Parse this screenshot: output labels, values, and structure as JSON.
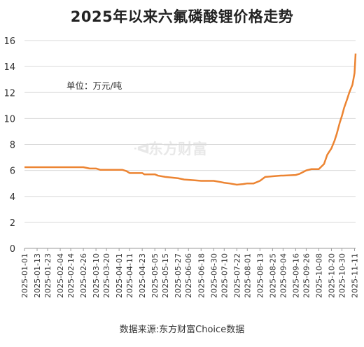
{
  "title": "2025年以来六氟磷酸锂价格走势",
  "unit_label": "单位：万元/吨",
  "source": "数据来源:东方财富Choice数据",
  "watermark": "东方财富",
  "colors": {
    "line": "#ec8432",
    "grid": "#d9d9d9",
    "axis": "#999999"
  },
  "chart_data": {
    "type": "line",
    "title": "2025年以来六氟磷酸锂价格走势",
    "xlabel": "",
    "ylabel": "单位：万元/吨",
    "ylim": [
      0,
      16
    ],
    "yticks": [
      0,
      2,
      4,
      6,
      8,
      10,
      12,
      14,
      16
    ],
    "grid": "horizontal",
    "xtick_labels": [
      "2025-01-01",
      "2025-01-13",
      "2025-01-23",
      "2025-02-04",
      "2025-02-14",
      "2025-02-26",
      "2025-03-10",
      "2025-03-20",
      "2025-04-01",
      "2025-04-11",
      "2025-04-23",
      "2025-05-05",
      "2025-05-15",
      "2025-05-27",
      "2025-06-06",
      "2025-06-18",
      "2025-06-30",
      "2025-07-10",
      "2025-07-22",
      "2025-08-01",
      "2025-08-13",
      "2025-08-25",
      "2025-09-04",
      "2025-09-16",
      "2025-09-26",
      "2025-10-08",
      "2025-10-20",
      "2025-10-30",
      "2025-11-11"
    ],
    "series": [
      {
        "x": [
          "2025-01-01",
          "2025-02-26",
          "2025-03-04",
          "2025-03-10",
          "2025-03-14",
          "2025-04-04",
          "2025-04-08",
          "2025-04-11",
          "2025-04-23",
          "2025-04-25",
          "2025-05-05",
          "2025-05-08",
          "2025-05-15",
          "2025-05-27",
          "2025-06-02",
          "2025-06-10",
          "2025-06-18",
          "2025-06-30",
          "2025-07-07",
          "2025-07-10",
          "2025-07-15",
          "2025-07-22",
          "2025-07-28",
          "2025-08-01",
          "2025-08-07",
          "2025-08-13",
          "2025-08-18",
          "2025-08-25",
          "2025-09-02",
          "2025-09-04",
          "2025-09-16",
          "2025-09-20",
          "2025-09-26",
          "2025-10-01",
          "2025-10-08",
          "2025-10-13",
          "2025-10-16",
          "2025-10-20",
          "2025-10-23",
          "2025-10-25",
          "2025-10-28",
          "2025-10-30",
          "2025-11-01",
          "2025-11-04",
          "2025-11-06",
          "2025-11-09",
          "2025-11-11",
          "2025-11-12"
        ],
        "values": [
          6.25,
          6.25,
          6.15,
          6.15,
          6.05,
          6.05,
          5.95,
          5.8,
          5.8,
          5.7,
          5.7,
          5.6,
          5.5,
          5.4,
          5.3,
          5.25,
          5.2,
          5.2,
          5.1,
          5.05,
          5.0,
          4.9,
          4.95,
          5.0,
          5.0,
          5.2,
          5.5,
          5.55,
          5.6,
          5.6,
          5.65,
          5.75,
          6.0,
          6.1,
          6.1,
          6.5,
          7.2,
          7.7,
          8.3,
          8.8,
          9.7,
          10.2,
          10.8,
          11.5,
          12.0,
          12.6,
          13.5,
          15.0
        ]
      }
    ]
  }
}
